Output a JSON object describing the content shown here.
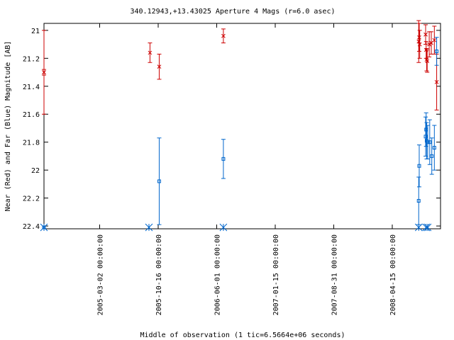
{
  "chart_data": {
    "type": "scatter",
    "title": "340.12943,+13.43025   Aperture 4 Mags (r=6.0 asec)",
    "xlabel": "Middle of observation (1 tic=6.5664e+06 seconds)",
    "ylabel": "Near (Red) and Far (Blue) Magnitude [AB]",
    "x_unit": "date",
    "xlim": [
      "2004-07-28",
      "2008-10-20"
    ],
    "ylim": [
      22.42,
      20.95
    ],
    "y_inverted": true,
    "grid": false,
    "x_ticks": [
      "2005-03-02 00:00:00",
      "2005-10-16 00:00:00",
      "2006-06-01 00:00:00",
      "2007-01-15 00:00:00",
      "2007-08-31 00:00:00",
      "2008-04-15 00:00:00"
    ],
    "y_ticks": [
      21,
      21.2,
      21.4,
      21.6,
      21.8,
      22,
      22.2,
      22.4
    ],
    "series": [
      {
        "color": "#cc0000",
        "marker": "x",
        "points": [
          {
            "x": "2004-07-28",
            "y": 21.3,
            "err": 0.3
          },
          {
            "x": "2004-07-28",
            "y": 21.3,
            "err": 0.02
          },
          {
            "x": "2005-09-14",
            "y": 21.16,
            "err": 0.07
          },
          {
            "x": "2005-10-20",
            "y": 21.26,
            "err": 0.09
          },
          {
            "x": "2006-06-27",
            "y": 21.04,
            "err": 0.05
          },
          {
            "x": "2008-07-27",
            "y": 21.08,
            "err": 0.15
          },
          {
            "x": "2008-07-29",
            "y": 21.05,
            "err": 0.1
          },
          {
            "x": "2008-07-31",
            "y": 21.1,
            "err": 0.1
          },
          {
            "x": "2008-08-23",
            "y": 21.03,
            "err": 0.07
          },
          {
            "x": "2008-08-25",
            "y": 21.14,
            "err": 0.06
          },
          {
            "x": "2008-08-27",
            "y": 21.21,
            "err": 0.08
          },
          {
            "x": "2008-08-29",
            "y": 21.22,
            "err": 0.08
          },
          {
            "x": "2008-09-06",
            "y": 21.1,
            "err": 0.09
          },
          {
            "x": "2008-09-14",
            "y": 21.09,
            "err": 0.08
          },
          {
            "x": "2008-09-26",
            "y": 21.07,
            "err": 0.1
          },
          {
            "x": "2008-10-05",
            "y": 21.37,
            "err": 0.2
          }
        ]
      },
      {
        "color": "#0066cc",
        "marker": "square",
        "points": [
          {
            "x": "2004-07-28",
            "y": 22.41,
            "err": 0.0
          },
          {
            "x": "2005-10-20",
            "y": 22.08,
            "err": 0.31
          },
          {
            "x": "2006-06-27",
            "y": 21.92,
            "err": 0.14
          },
          {
            "x": "2008-07-27",
            "y": 22.22,
            "err": 0.17
          },
          {
            "x": "2008-07-29",
            "y": 21.97,
            "err": 0.15
          },
          {
            "x": "2008-08-23",
            "y": 21.76,
            "err": 0.14
          },
          {
            "x": "2008-08-25",
            "y": 21.71,
            "err": 0.12
          },
          {
            "x": "2008-08-27",
            "y": 21.79,
            "err": 0.13
          },
          {
            "x": "2008-08-31",
            "y": 21.8,
            "err": 0.12
          },
          {
            "x": "2008-09-08",
            "y": 21.8,
            "err": 0.16
          },
          {
            "x": "2008-09-16",
            "y": 21.9,
            "err": 0.13
          },
          {
            "x": "2008-09-26",
            "y": 21.84,
            "err": 0.16
          },
          {
            "x": "2008-10-05",
            "y": 21.15,
            "err": 0.1
          }
        ]
      },
      {
        "color": "#0066cc",
        "marker": "asterisk",
        "points": [
          {
            "x": "2004-07-28",
            "y": 22.41
          },
          {
            "x": "2005-09-10",
            "y": 22.41
          },
          {
            "x": "2006-06-27",
            "y": 22.41
          },
          {
            "x": "2008-07-27",
            "y": 22.41
          },
          {
            "x": "2008-08-25",
            "y": 22.41
          },
          {
            "x": "2008-08-31",
            "y": 22.41
          }
        ]
      }
    ]
  }
}
